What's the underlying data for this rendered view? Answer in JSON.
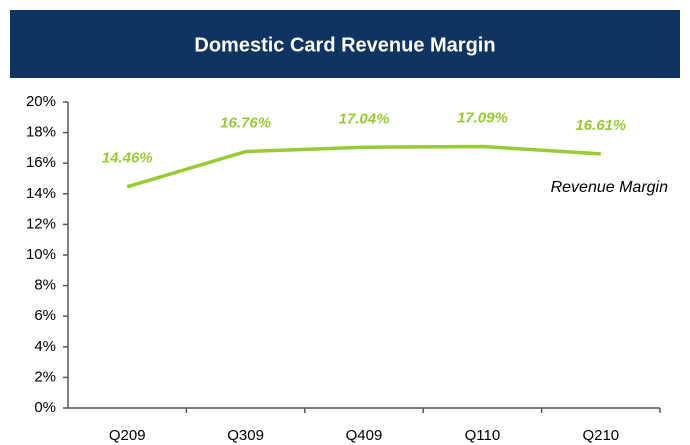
{
  "chart_data": {
    "type": "line",
    "title": "Domestic Card Revenue Margin",
    "categories": [
      "Q209",
      "Q309",
      "Q409",
      "Q110",
      "Q210"
    ],
    "series": [
      {
        "name": "Revenue Margin",
        "color": "#99cc33",
        "values": [
          14.46,
          16.76,
          17.04,
          17.09,
          16.61
        ],
        "value_labels": [
          "14.46%",
          "16.76%",
          "17.04%",
          "17.09%",
          "16.61%"
        ]
      }
    ],
    "ylim": [
      0,
      20
    ],
    "yticks": [
      {
        "value": 0,
        "label": "0%"
      },
      {
        "value": 2,
        "label": "2%"
      },
      {
        "value": 4,
        "label": "4%"
      },
      {
        "value": 6,
        "label": "6%"
      },
      {
        "value": 8,
        "label": "8%"
      },
      {
        "value": 10,
        "label": "10%"
      },
      {
        "value": 12,
        "label": "12%"
      },
      {
        "value": 14,
        "label": "14%"
      },
      {
        "value": 16,
        "label": "16%"
      },
      {
        "value": 18,
        "label": "18%"
      },
      {
        "value": 20,
        "label": "20%"
      }
    ],
    "grid": false
  }
}
